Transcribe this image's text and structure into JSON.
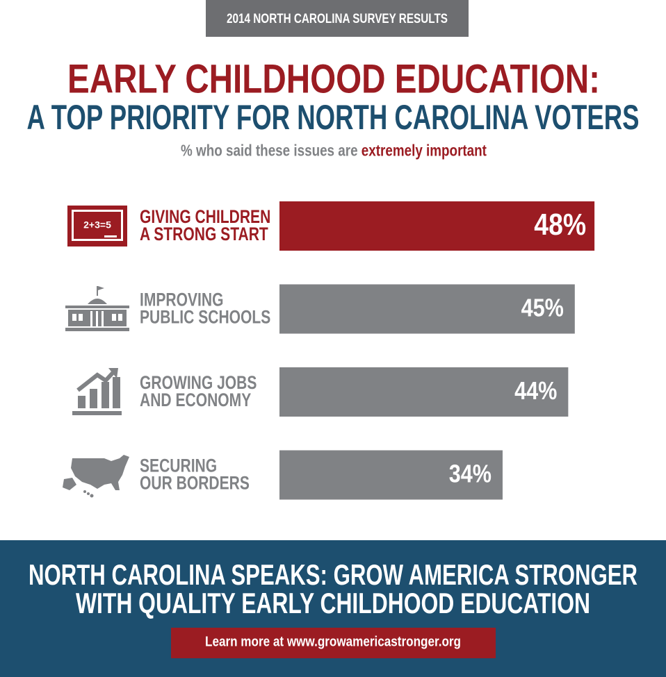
{
  "chart_data": {
    "type": "hbar",
    "header": "2014 NORTH CAROLINA SURVEY RESULTS",
    "title": [
      "EARLY CHILDHOOD EDUCATION:",
      "A TOP PRIORITY FOR NORTH CAROLINA VOTERS"
    ],
    "subtitle": [
      "% who said these issues are",
      "extremely important"
    ],
    "categories": [
      [
        "GIVING CHILDREN",
        "A STRONG START"
      ],
      [
        "IMPROVING",
        "PUBLIC SCHOOLS"
      ],
      [
        "GROWING JOBS",
        "AND ECONOMY"
      ],
      [
        "SECURING",
        "OUR BORDERS"
      ]
    ],
    "values": [
      48,
      45,
      44,
      34
    ],
    "value_labels": [
      "48%",
      "45%",
      "44%",
      "34%"
    ],
    "colors": [
      "#9b1c22",
      "#808285",
      "#808285",
      "#808285"
    ]
  },
  "footer": {
    "title": [
      "NORTH CAROLINA SPEAKS: GROW AMERICA STRONGER",
      "WITH QUALITY EARLY CHILDHOOD EDUCATION"
    ],
    "link": "Learn more at www.growamericastronger.org"
  }
}
